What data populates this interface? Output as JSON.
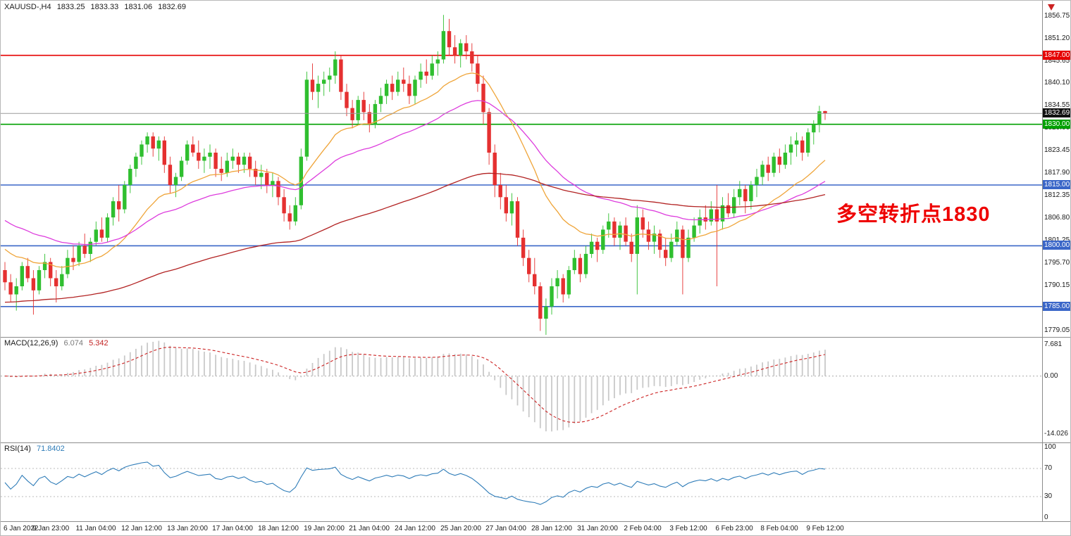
{
  "header": {
    "symbol_period": "XAUUSD-,H4",
    "open": "1833.25",
    "high": "1833.33",
    "low": "1831.06",
    "close": "1832.69"
  },
  "annotation": {
    "text": "多空转折点1830",
    "color": "#ee0000"
  },
  "colors": {
    "bull": "#2fbf2f",
    "bear": "#e53030",
    "ma_fast": "#efa53a",
    "ma_mid": "#dd3cdd",
    "ma_slow": "#b22222",
    "macd_hist": "#c9c9c9",
    "macd_signal": "#cc2222",
    "rsi_line": "#2e7cb8",
    "bid_line": "#9a9a9a",
    "bid_badge": "#111111",
    "level_red": "#e60000",
    "level_green": "#00a000",
    "level_blue": "#3a66c8",
    "axis_text": "#1a1a1a"
  },
  "levels": [
    {
      "name": "resistance-line-1847",
      "price": 1847.0,
      "label": "1847.00",
      "line_color": "#e60000",
      "badge_bg": "#e60000",
      "line_width": 1.6
    },
    {
      "name": "bid-price-line",
      "price": 1832.69,
      "label": "1832.69",
      "line_color": "#9a9a9a",
      "badge_bg": "#111111",
      "line_width": 1
    },
    {
      "name": "pivot-line-1830",
      "price": 1830.0,
      "label": "1830.00",
      "line_color": "#00a000",
      "badge_bg": "#00a000",
      "line_width": 1.6
    },
    {
      "name": "support-line-1815",
      "price": 1815.0,
      "label": "1815.00",
      "line_color": "#3a66c8",
      "badge_bg": "#3a66c8",
      "line_width": 1.6
    },
    {
      "name": "support-line-1800",
      "price": 1800.0,
      "label": "1800.00",
      "line_color": "#3a66c8",
      "badge_bg": "#3a66c8",
      "line_width": 1.6
    },
    {
      "name": "support-line-1785",
      "price": 1785.0,
      "label": "1785.00",
      "line_color": "#3a66c8",
      "badge_bg": "#3a66c8",
      "line_width": 1.6
    }
  ],
  "chart_data": {
    "type": "candlestick",
    "symbol": "XAUUSD-",
    "timeframe": "H4",
    "current_bar": {
      "open": 1833.25,
      "high": 1833.33,
      "low": 1831.06,
      "close": 1832.69
    },
    "y_range": [
      1777.5,
      1860.5
    ],
    "y_ticks": [
      1856.75,
      1851.2,
      1845.65,
      1840.1,
      1834.55,
      1829.0,
      1823.45,
      1817.9,
      1812.35,
      1806.8,
      1801.25,
      1795.7,
      1790.15,
      1784.6,
      1779.05
    ],
    "x_labels": [
      "6 Jan 2022",
      "9 Jan 23:00",
      "11 Jan 04:00",
      "12 Jan 12:00",
      "13 Jan 20:00",
      "17 Jan 04:00",
      "18 Jan 12:00",
      "19 Jan 20:00",
      "21 Jan 04:00",
      "24 Jan 12:00",
      "25 Jan 20:00",
      "27 Jan 04:00",
      "28 Jan 12:00",
      "31 Jan 20:00",
      "2 Feb 04:00",
      "3 Feb 12:00",
      "6 Feb 23:00",
      "8 Feb 04:00",
      "9 Feb 12:00"
    ],
    "horizontal_levels": [
      1847,
      1830,
      1815,
      1800,
      1785
    ],
    "overlays": [
      {
        "name": "ma-fast",
        "color": "#efa53a"
      },
      {
        "name": "ma-mid",
        "color": "#dd3cdd"
      },
      {
        "name": "ma-slow",
        "color": "#b22222"
      }
    ],
    "candles": [
      [
        1794,
        1796,
        1789,
        1791
      ],
      [
        1791,
        1793,
        1786,
        1788
      ],
      [
        1788,
        1792,
        1784,
        1790
      ],
      [
        1790,
        1796,
        1789,
        1795
      ],
      [
        1795,
        1797,
        1791,
        1792
      ],
      [
        1792,
        1794,
        1783,
        1789
      ],
      [
        1789,
        1795,
        1788,
        1794
      ],
      [
        1794,
        1798,
        1792,
        1796
      ],
      [
        1796,
        1797,
        1790,
        1792
      ],
      [
        1792,
        1794,
        1786,
        1790
      ],
      [
        1790,
        1795,
        1789,
        1793
      ],
      [
        1793,
        1799,
        1792,
        1797
      ],
      [
        1797,
        1800,
        1794,
        1796
      ],
      [
        1796,
        1801,
        1795,
        1800
      ],
      [
        1800,
        1803,
        1797,
        1798
      ],
      [
        1798,
        1802,
        1796,
        1801
      ],
      [
        1801,
        1806,
        1800,
        1804
      ],
      [
        1804,
        1807,
        1801,
        1802
      ],
      [
        1802,
        1808,
        1801,
        1807
      ],
      [
        1807,
        1812,
        1805,
        1811
      ],
      [
        1811,
        1815,
        1806,
        1809
      ],
      [
        1809,
        1816,
        1808,
        1815
      ],
      [
        1815,
        1820,
        1813,
        1819
      ],
      [
        1819,
        1823,
        1817,
        1822
      ],
      [
        1822,
        1826,
        1820,
        1825
      ],
      [
        1825,
        1828,
        1823,
        1827
      ],
      [
        1827,
        1828,
        1822,
        1824
      ],
      [
        1824,
        1827,
        1821,
        1826
      ],
      [
        1826,
        1827,
        1818,
        1820
      ],
      [
        1820,
        1822,
        1813,
        1815
      ],
      [
        1815,
        1818,
        1812,
        1817
      ],
      [
        1817,
        1822,
        1816,
        1821
      ],
      [
        1821,
        1826,
        1820,
        1825
      ],
      [
        1825,
        1827,
        1822,
        1823
      ],
      [
        1823,
        1826,
        1819,
        1821
      ],
      [
        1821,
        1824,
        1818,
        1822
      ],
      [
        1822,
        1825,
        1819,
        1823
      ],
      [
        1823,
        1824,
        1817,
        1819
      ],
      [
        1819,
        1822,
        1816,
        1818
      ],
      [
        1818,
        1823,
        1817,
        1821
      ],
      [
        1821,
        1824,
        1819,
        1822
      ],
      [
        1822,
        1823,
        1818,
        1820
      ],
      [
        1820,
        1823,
        1818,
        1822
      ],
      [
        1822,
        1823,
        1817,
        1819
      ],
      [
        1819,
        1821,
        1815,
        1817
      ],
      [
        1817,
        1820,
        1814,
        1818
      ],
      [
        1818,
        1819,
        1813,
        1815
      ],
      [
        1815,
        1818,
        1812,
        1816
      ],
      [
        1816,
        1817,
        1810,
        1812
      ],
      [
        1812,
        1814,
        1806,
        1808
      ],
      [
        1808,
        1810,
        1804,
        1806
      ],
      [
        1806,
        1812,
        1805,
        1810
      ],
      [
        1810,
        1824,
        1809,
        1822
      ],
      [
        1822,
        1843,
        1821,
        1841
      ],
      [
        1841,
        1845,
        1836,
        1838
      ],
      [
        1838,
        1842,
        1834,
        1840
      ],
      [
        1840,
        1843,
        1837,
        1841
      ],
      [
        1841,
        1844,
        1838,
        1842
      ],
      [
        1842,
        1848,
        1840,
        1846
      ],
      [
        1846,
        1847,
        1836,
        1838
      ],
      [
        1838,
        1840,
        1832,
        1834
      ],
      [
        1834,
        1836,
        1829,
        1831
      ],
      [
        1831,
        1837,
        1830,
        1836
      ],
      [
        1836,
        1838,
        1831,
        1833
      ],
      [
        1833,
        1835,
        1828,
        1830
      ],
      [
        1830,
        1836,
        1829,
        1835
      ],
      [
        1835,
        1839,
        1833,
        1837
      ],
      [
        1837,
        1841,
        1835,
        1840
      ],
      [
        1840,
        1842,
        1836,
        1838
      ],
      [
        1838,
        1843,
        1837,
        1841
      ],
      [
        1841,
        1844,
        1838,
        1840
      ],
      [
        1840,
        1842,
        1835,
        1837
      ],
      [
        1837,
        1842,
        1835,
        1841
      ],
      [
        1841,
        1845,
        1839,
        1843
      ],
      [
        1843,
        1846,
        1840,
        1842
      ],
      [
        1842,
        1847,
        1841,
        1845
      ],
      [
        1845,
        1848,
        1842,
        1846
      ],
      [
        1846,
        1857,
        1845,
        1853
      ],
      [
        1853,
        1856,
        1847,
        1849
      ],
      [
        1849,
        1852,
        1845,
        1847
      ],
      [
        1847,
        1851,
        1844,
        1850
      ],
      [
        1850,
        1852,
        1846,
        1848
      ],
      [
        1848,
        1850,
        1843,
        1845
      ],
      [
        1845,
        1847,
        1838,
        1840
      ],
      [
        1840,
        1842,
        1830,
        1833
      ],
      [
        1833,
        1834,
        1820,
        1823
      ],
      [
        1823,
        1825,
        1812,
        1815
      ],
      [
        1815,
        1818,
        1809,
        1812
      ],
      [
        1812,
        1815,
        1806,
        1808
      ],
      [
        1808,
        1813,
        1805,
        1811
      ],
      [
        1811,
        1812,
        1800,
        1802
      ],
      [
        1802,
        1804,
        1795,
        1797
      ],
      [
        1797,
        1799,
        1791,
        1793
      ],
      [
        1793,
        1797,
        1788,
        1790
      ],
      [
        1790,
        1791,
        1779,
        1782
      ],
      [
        1782,
        1787,
        1778,
        1785
      ],
      [
        1785,
        1792,
        1783,
        1790
      ],
      [
        1790,
        1794,
        1787,
        1792
      ],
      [
        1792,
        1793,
        1786,
        1788
      ],
      [
        1788,
        1795,
        1787,
        1794
      ],
      [
        1794,
        1799,
        1793,
        1797
      ],
      [
        1797,
        1798,
        1791,
        1793
      ],
      [
        1793,
        1800,
        1792,
        1798
      ],
      [
        1798,
        1803,
        1797,
        1801
      ],
      [
        1801,
        1802,
        1796,
        1799
      ],
      [
        1799,
        1805,
        1798,
        1804
      ],
      [
        1804,
        1808,
        1802,
        1806
      ],
      [
        1806,
        1807,
        1800,
        1802
      ],
      [
        1802,
        1806,
        1799,
        1805
      ],
      [
        1805,
        1807,
        1800,
        1801
      ],
      [
        1801,
        1803,
        1796,
        1798
      ],
      [
        1798,
        1810,
        1788,
        1807
      ],
      [
        1807,
        1809,
        1802,
        1804
      ],
      [
        1804,
        1806,
        1799,
        1801
      ],
      [
        1801,
        1805,
        1798,
        1803
      ],
      [
        1803,
        1804,
        1797,
        1799
      ],
      [
        1799,
        1802,
        1795,
        1797
      ],
      [
        1797,
        1803,
        1796,
        1801
      ],
      [
        1801,
        1806,
        1800,
        1804
      ],
      [
        1804,
        1805,
        1788,
        1797
      ],
      [
        1797,
        1804,
        1796,
        1802
      ],
      [
        1802,
        1807,
        1801,
        1805
      ],
      [
        1805,
        1809,
        1803,
        1807
      ],
      [
        1807,
        1810,
        1804,
        1806
      ],
      [
        1806,
        1811,
        1805,
        1809
      ],
      [
        1809,
        1815,
        1790,
        1806
      ],
      [
        1806,
        1812,
        1804,
        1810
      ],
      [
        1810,
        1813,
        1807,
        1808
      ],
      [
        1808,
        1814,
        1807,
        1812
      ],
      [
        1812,
        1816,
        1810,
        1814
      ],
      [
        1814,
        1815,
        1808,
        1811
      ],
      [
        1811,
        1816,
        1809,
        1815
      ],
      [
        1815,
        1819,
        1812,
        1817
      ],
      [
        1817,
        1821,
        1815,
        1820
      ],
      [
        1820,
        1822,
        1816,
        1818
      ],
      [
        1818,
        1823,
        1817,
        1822
      ],
      [
        1822,
        1824,
        1818,
        1820
      ],
      [
        1820,
        1825,
        1819,
        1823
      ],
      [
        1823,
        1827,
        1820,
        1825
      ],
      [
        1825,
        1828,
        1822,
        1826
      ],
      [
        1826,
        1827,
        1821,
        1823
      ],
      [
        1823,
        1829,
        1822,
        1828
      ],
      [
        1828,
        1831,
        1825,
        1830
      ],
      [
        1830,
        1834.55,
        1828,
        1833.2
      ],
      [
        1833.25,
        1833.33,
        1831.06,
        1832.69
      ]
    ],
    "indicators": [
      {
        "type": "macd",
        "label": "MACD(12,26,9)",
        "display_values": [
          "6.074",
          "5.342"
        ],
        "values": [
          6.074,
          5.342
        ],
        "range": [
          -16.1,
          9.32
        ],
        "axis_labels": [
          {
            "text": "7.681",
            "value": 7.681
          },
          {
            "text": "0.00",
            "value": 0
          },
          {
            "text": "-14.026",
            "value": -14.026
          }
        ]
      },
      {
        "type": "rsi",
        "label": "RSI(14)",
        "display_value": "71.8402",
        "value": 71.8402,
        "range": [
          0,
          100
        ],
        "levels": [
          70,
          30
        ],
        "axis_labels": [
          {
            "text": "100",
            "value": 100
          },
          {
            "text": "70",
            "value": 70
          },
          {
            "text": "30",
            "value": 30
          },
          {
            "text": "0",
            "value": 0
          }
        ]
      }
    ]
  }
}
